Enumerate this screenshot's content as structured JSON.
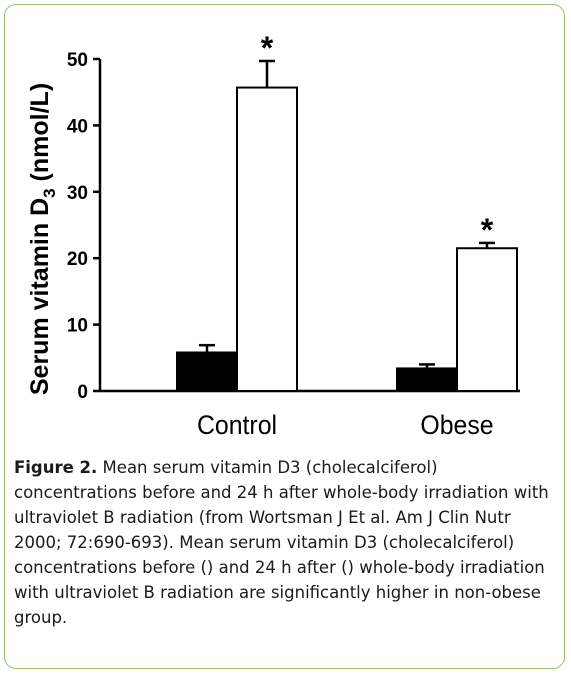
{
  "chart_data": {
    "type": "bar",
    "categories": [
      "Control",
      "Obese"
    ],
    "series": [
      {
        "fill": "#000000",
        "values": [
          5.8,
          3.4
        ],
        "errors": [
          1.1,
          0.6
        ],
        "significant": [
          false,
          false
        ]
      },
      {
        "fill": "#ffffff",
        "values": [
          45.7,
          21.5
        ],
        "errors": [
          4.0,
          0.8
        ],
        "significant": [
          true,
          true
        ]
      }
    ],
    "ylabel": "Serum vitamin D",
    "ylabel_sub": "3",
    "ylabel_unit": " (nmol/L)",
    "ylim": [
      0,
      50
    ],
    "yticks": [
      0,
      10,
      20,
      30,
      40,
      50
    ],
    "significance_marker": "*",
    "grid": false
  },
  "caption": {
    "label": "Figure 2.",
    "text": " Mean serum vitamin D3 (cholecalciferol) concentrations before and 24 h after whole-body irradiation with ultraviolet B radiation (from Wortsman J Et al. Am J Clin Nutr 2000; 72:690-693). Mean serum vitamin D3 (cholecalciferol) concentrations before () and 24 h after () whole-body irradiation with ultraviolet B radiation are significantly higher in non-obese group."
  },
  "colors": {
    "frame": "#9ac06a",
    "text": "#1a1a1a"
  }
}
